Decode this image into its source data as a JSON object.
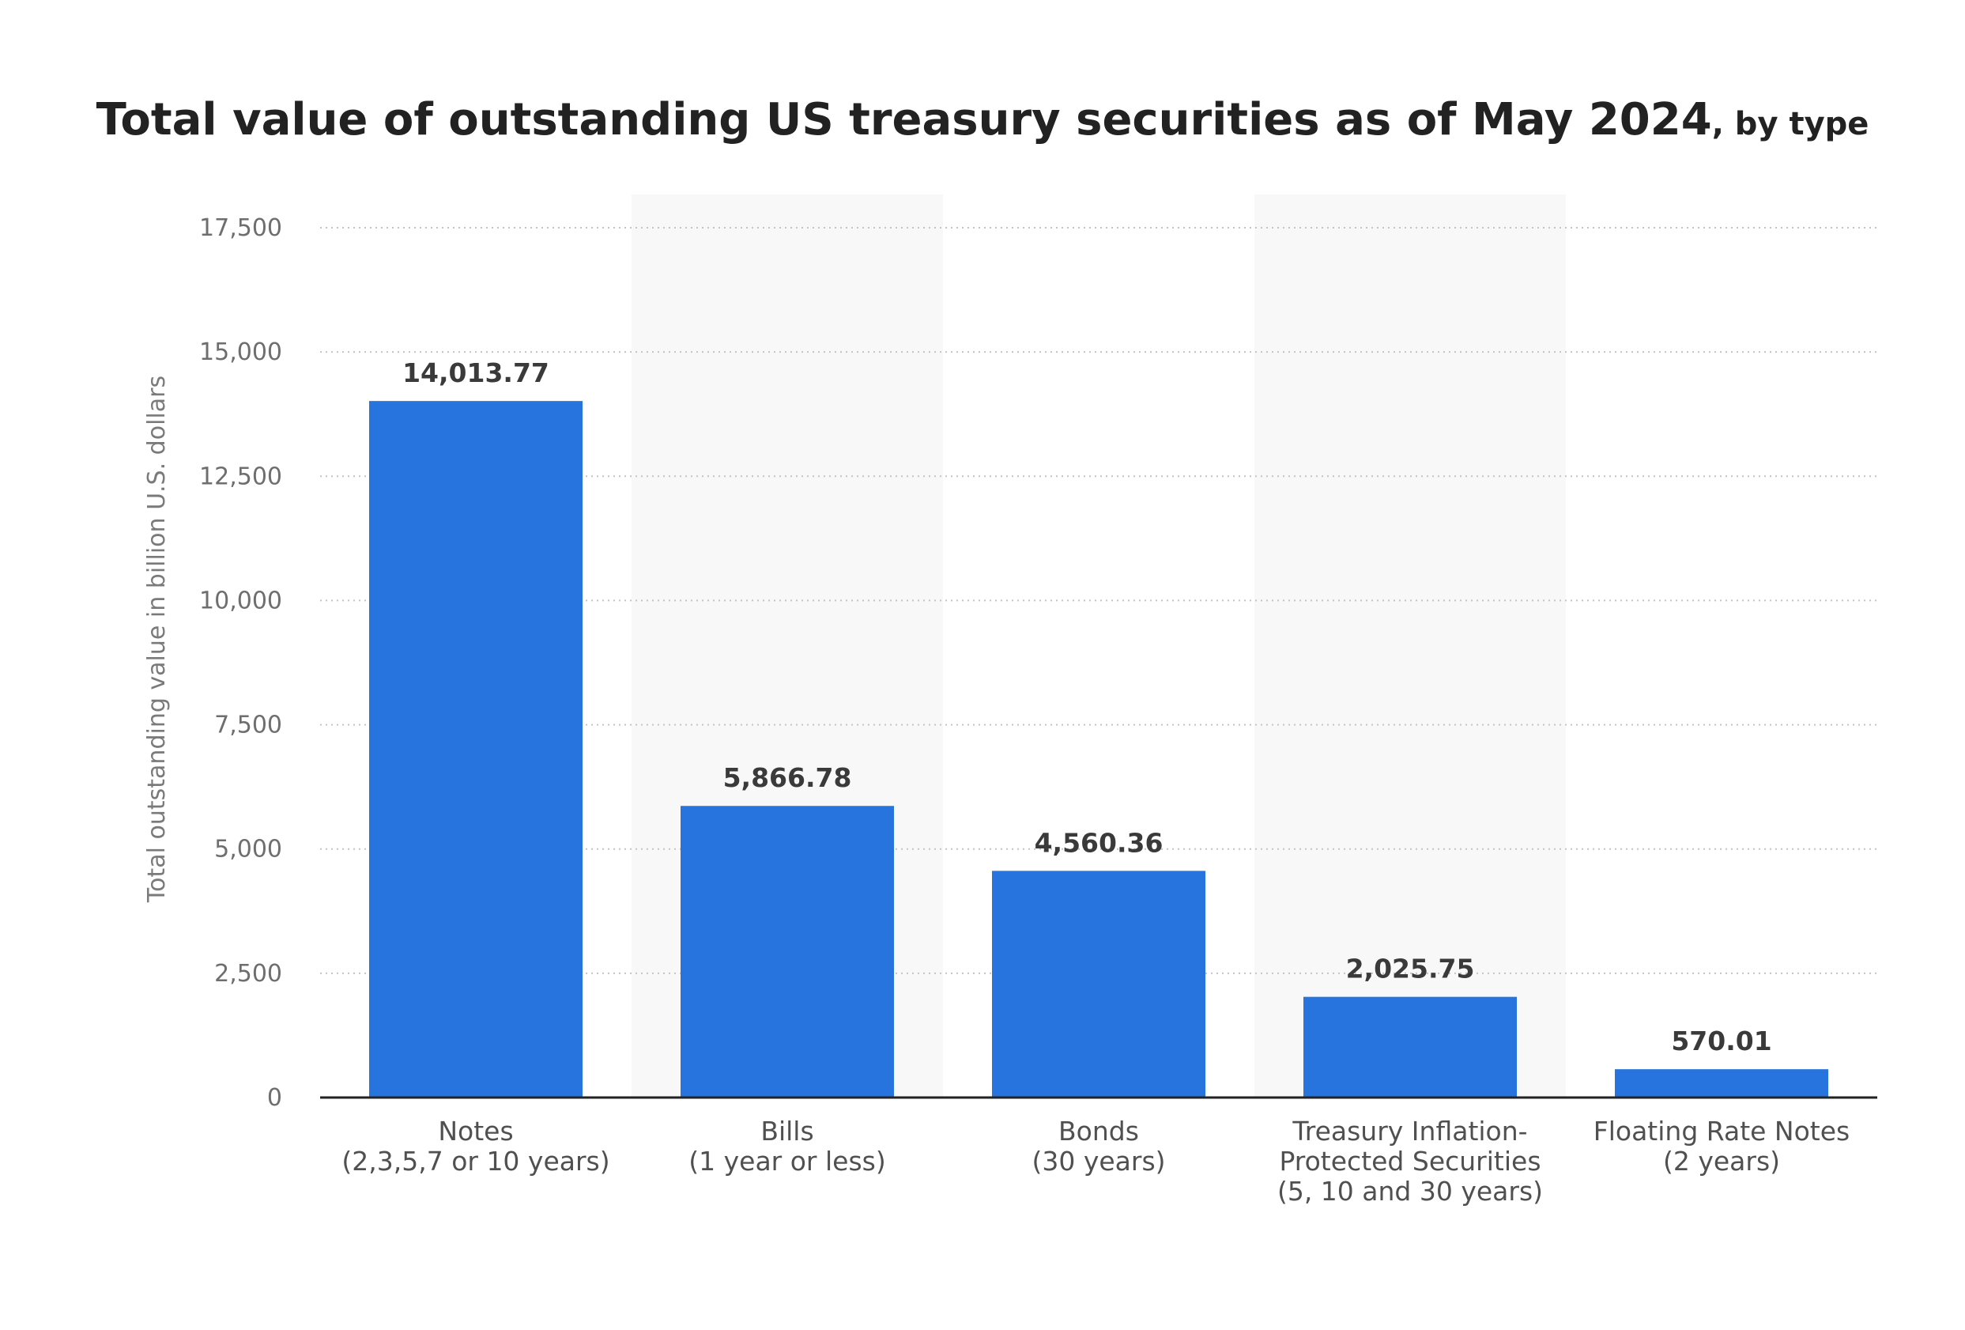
{
  "chart_data": {
    "type": "bar",
    "title": "Total value of outstanding US treasury securities as of May 2024",
    "subtitle": ", by type",
    "xlabel": "",
    "ylabel": "Total outstanding value in billion U.S. dollars",
    "ylim": [
      0,
      17500
    ],
    "yticks": [
      0,
      2500,
      5000,
      7500,
      10000,
      12500,
      15000,
      17500
    ],
    "ytick_labels": [
      "0",
      "2,500",
      "5,000",
      "7,500",
      "10,000",
      "12,500",
      "15,000",
      "17,500"
    ],
    "grid": "horizontal-dotted",
    "categories": [
      [
        "Notes",
        "(2,3,5,7 or 10 years)"
      ],
      [
        "Bills",
        "(1 year or less)"
      ],
      [
        "Bonds",
        "(30 years)"
      ],
      [
        "Treasury Inflation-",
        "Protected Securities",
        "(5, 10 and 30 years)"
      ],
      [
        "Floating Rate Notes",
        "(2 years)"
      ]
    ],
    "values": [
      14013.77,
      5866.78,
      4560.36,
      2025.75,
      570.01
    ],
    "value_labels": [
      "14,013.77",
      "5,866.78",
      "4,560.36",
      "2,025.75",
      "570.01"
    ],
    "colors": {
      "bar": "#2874de",
      "band": "#f8f8f8",
      "grid": "#c4c4c4",
      "axis": "#222222"
    }
  }
}
